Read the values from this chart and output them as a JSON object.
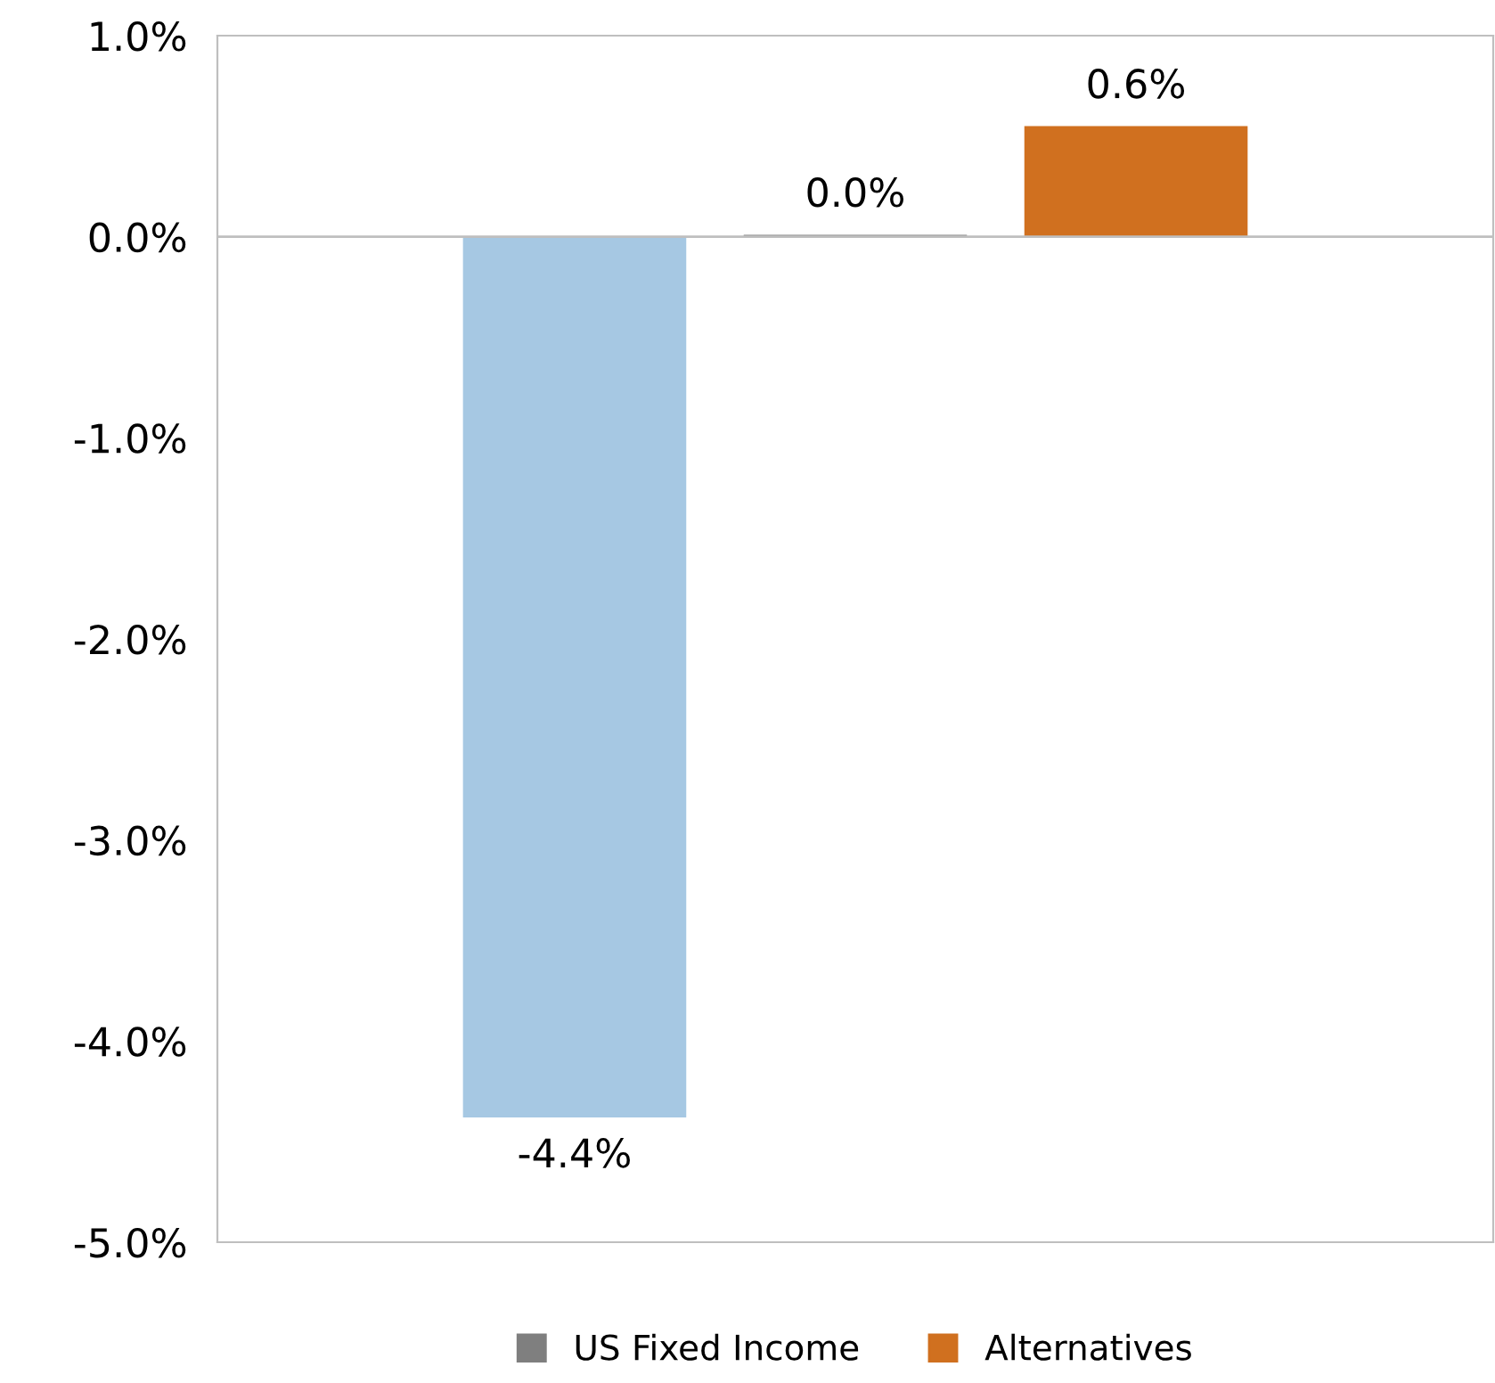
{
  "chart_data": {
    "type": "bar",
    "categories": [
      null
    ],
    "series": [
      {
        "color": "#a6c8e3",
        "values": [
          -4.38
        ],
        "value_labels": [
          "-4.4%"
        ]
      },
      {
        "name": "US Fixed Income",
        "color": "#7f7f7f",
        "values": [
          0.01
        ],
        "value_labels": [
          "0.0%"
        ]
      },
      {
        "name": "Alternatives",
        "color": "#d0701f",
        "values": [
          0.55
        ],
        "value_labels": [
          "0.6%"
        ]
      }
    ],
    "ylim": [
      -5,
      1
    ],
    "yticks": [
      {
        "value": -5,
        "label": "-5.0%"
      },
      {
        "value": -4,
        "label": "-4.0%"
      },
      {
        "value": -3,
        "label": "-3.0%"
      },
      {
        "value": -2,
        "label": "-2.0%"
      },
      {
        "value": -1,
        "label": "-1.0%"
      },
      {
        "value": 0,
        "label": "0.0%"
      },
      {
        "value": 1,
        "label": "1.0%"
      }
    ],
    "legend": "bottom"
  }
}
